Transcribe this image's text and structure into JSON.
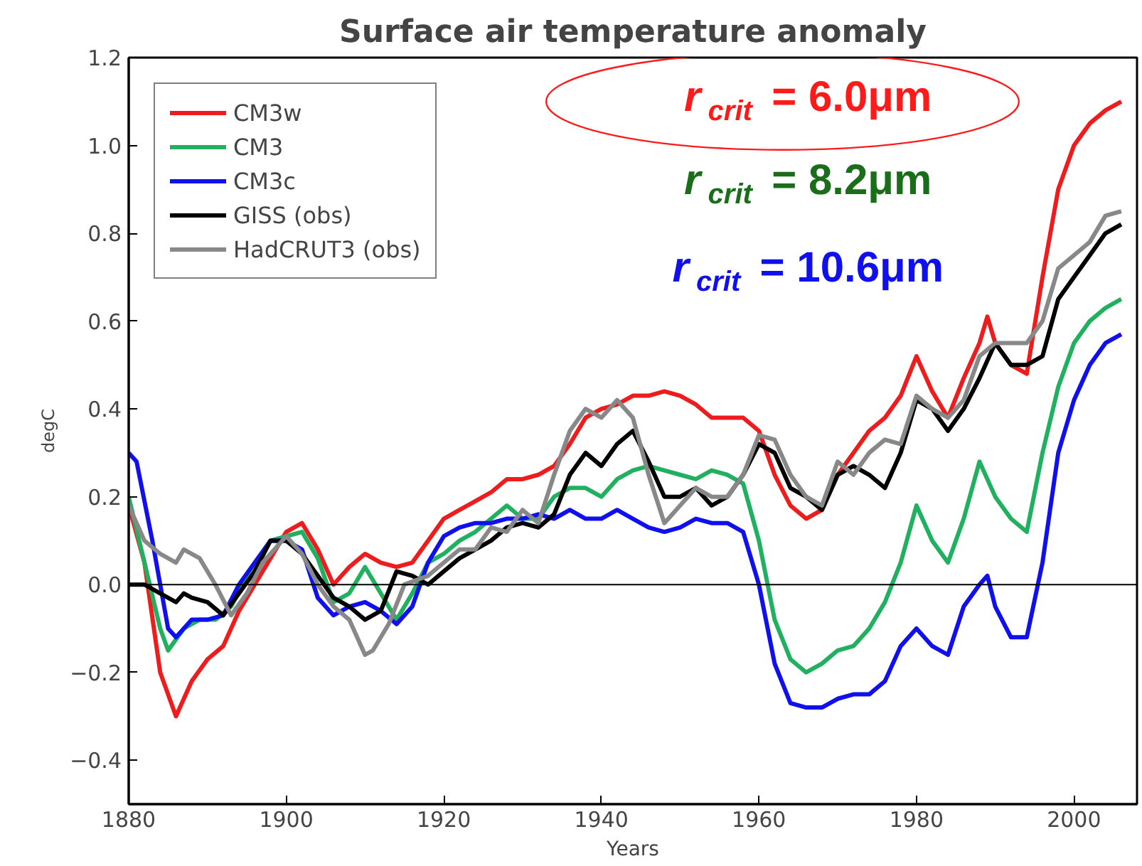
{
  "chart_data": {
    "type": "line",
    "title": "Surface air temperature anomaly",
    "xlabel": "Years",
    "ylabel": "degC",
    "xlim": [
      1880,
      2008
    ],
    "xticks": [
      1880,
      1900,
      1920,
      1940,
      1960,
      1980,
      2000
    ],
    "ylim": [
      -0.5,
      1.2
    ],
    "yticks": [
      {
        "value": -0.4,
        "label": "−0.4"
      },
      {
        "value": -0.2,
        "label": "−0.2"
      },
      {
        "value": 0,
        "label": "0.0"
      },
      {
        "value": 0.2,
        "label": "0.2"
      },
      {
        "value": 0.4,
        "label": "0.4"
      },
      {
        "value": 0.6,
        "label": "0.6"
      },
      {
        "value": 0.8,
        "label": "0.8"
      },
      {
        "value": 1.0,
        "label": "1.0"
      },
      {
        "value": 1.2,
        "label": "1.2"
      }
    ],
    "grid": false,
    "legend": "top left",
    "line_style": "solid",
    "ref_lines": [
      {
        "axis": "y",
        "value": 0,
        "label": null,
        "color": "#000000"
      }
    ],
    "annotations": [
      "r$_{crit}$= 6.0μm",
      "r$_{crit}$= 8.2μm",
      "r$_{crit}$= 10.6μm"
    ],
    "series": [
      {
        "name": "CM3w",
        "color": "#ee1c1c",
        "x": [
          1880,
          1882,
          1884,
          1886,
          1888,
          1890,
          1892,
          1894,
          1896,
          1898,
          1900,
          1902,
          1904,
          1906,
          1908,
          1910,
          1912,
          1914,
          1916,
          1918,
          1920,
          1922,
          1924,
          1926,
          1928,
          1930,
          1932,
          1934,
          1936,
          1938,
          1940,
          1942,
          1944,
          1946,
          1948,
          1950,
          1952,
          1954,
          1956,
          1958,
          1960,
          1962,
          1964,
          1966,
          1968,
          1970,
          1972,
          1974,
          1976,
          1978,
          1980,
          1982,
          1984,
          1986,
          1988,
          1989,
          1990,
          1992,
          1994,
          1996,
          1998,
          2000,
          2002,
          2004,
          2006
        ],
        "values": [
          0.18,
          0.05,
          -0.2,
          -0.3,
          -0.22,
          -0.17,
          -0.14,
          -0.06,
          0.0,
          0.06,
          0.12,
          0.14,
          0.08,
          0.0,
          0.04,
          0.07,
          0.05,
          0.04,
          0.05,
          0.1,
          0.15,
          0.17,
          0.19,
          0.21,
          0.24,
          0.24,
          0.25,
          0.27,
          0.32,
          0.38,
          0.4,
          0.41,
          0.43,
          0.43,
          0.44,
          0.43,
          0.41,
          0.38,
          0.38,
          0.38,
          0.35,
          0.25,
          0.18,
          0.15,
          0.17,
          0.25,
          0.3,
          0.35,
          0.38,
          0.43,
          0.52,
          0.44,
          0.38,
          0.47,
          0.55,
          0.61,
          0.55,
          0.5,
          0.48,
          0.7,
          0.9,
          1.0,
          1.05,
          1.08,
          1.1
        ]
      },
      {
        "name": "CM3",
        "color": "#20b060",
        "x": [
          1880,
          1882,
          1884,
          1885,
          1887,
          1889,
          1891,
          1893,
          1895,
          1898,
          1900,
          1902,
          1904,
          1906,
          1908,
          1910,
          1912,
          1914,
          1916,
          1918,
          1920,
          1922,
          1924,
          1926,
          1928,
          1930,
          1932,
          1934,
          1936,
          1938,
          1940,
          1942,
          1944,
          1946,
          1948,
          1950,
          1952,
          1954,
          1956,
          1958,
          1960,
          1962,
          1964,
          1966,
          1968,
          1970,
          1972,
          1974,
          1976,
          1978,
          1980,
          1982,
          1984,
          1986,
          1988,
          1990,
          1992,
          1994,
          1996,
          1998,
          2000,
          2002,
          2004,
          2006
        ],
        "values": [
          0.2,
          0.05,
          -0.1,
          -0.15,
          -0.1,
          -0.08,
          -0.08,
          -0.05,
          0.02,
          0.1,
          0.11,
          0.12,
          0.06,
          -0.04,
          -0.02,
          0.04,
          -0.02,
          -0.08,
          -0.02,
          0.05,
          0.07,
          0.1,
          0.12,
          0.15,
          0.18,
          0.15,
          0.15,
          0.2,
          0.22,
          0.22,
          0.2,
          0.24,
          0.26,
          0.27,
          0.26,
          0.25,
          0.24,
          0.26,
          0.25,
          0.23,
          0.1,
          -0.08,
          -0.17,
          -0.2,
          -0.18,
          -0.15,
          -0.14,
          -0.1,
          -0.04,
          0.05,
          0.18,
          0.1,
          0.05,
          0.15,
          0.28,
          0.2,
          0.15,
          0.12,
          0.3,
          0.45,
          0.55,
          0.6,
          0.63,
          0.65
        ]
      },
      {
        "name": "CM3c",
        "color": "#1010ee",
        "x": [
          1880,
          1881,
          1883,
          1885,
          1886,
          1888,
          1890,
          1892,
          1894,
          1896,
          1898,
          1900,
          1902,
          1904,
          1906,
          1908,
          1910,
          1912,
          1914,
          1916,
          1918,
          1920,
          1922,
          1924,
          1926,
          1928,
          1930,
          1932,
          1934,
          1936,
          1938,
          1940,
          1942,
          1944,
          1946,
          1948,
          1950,
          1952,
          1954,
          1956,
          1958,
          1960,
          1962,
          1964,
          1966,
          1968,
          1970,
          1972,
          1974,
          1976,
          1978,
          1980,
          1982,
          1984,
          1986,
          1988,
          1989,
          1990,
          1992,
          1994,
          1996,
          1998,
          2000,
          2002,
          2004,
          2006
        ],
        "values": [
          0.3,
          0.28,
          0.1,
          -0.1,
          -0.12,
          -0.08,
          -0.08,
          -0.07,
          0.0,
          0.05,
          0.1,
          0.1,
          0.08,
          -0.03,
          -0.07,
          -0.05,
          -0.04,
          -0.06,
          -0.09,
          -0.05,
          0.05,
          0.11,
          0.13,
          0.14,
          0.14,
          0.15,
          0.15,
          0.16,
          0.15,
          0.17,
          0.15,
          0.15,
          0.17,
          0.15,
          0.13,
          0.12,
          0.13,
          0.15,
          0.14,
          0.14,
          0.12,
          0.0,
          -0.18,
          -0.27,
          -0.28,
          -0.28,
          -0.26,
          -0.25,
          -0.25,
          -0.22,
          -0.14,
          -0.1,
          -0.14,
          -0.16,
          -0.05,
          0.0,
          0.02,
          -0.05,
          -0.12,
          -0.12,
          0.05,
          0.3,
          0.42,
          0.5,
          0.55,
          0.57
        ]
      },
      {
        "name": "GISS (obs)",
        "color": "#000000",
        "x": [
          1880,
          1882,
          1884,
          1886,
          1887,
          1888,
          1890,
          1892,
          1894,
          1896,
          1898,
          1900,
          1902,
          1904,
          1906,
          1908,
          1910,
          1912,
          1914,
          1916,
          1918,
          1920,
          1922,
          1924,
          1926,
          1928,
          1930,
          1932,
          1934,
          1936,
          1938,
          1940,
          1942,
          1944,
          1946,
          1948,
          1950,
          1952,
          1954,
          1956,
          1958,
          1960,
          1962,
          1964,
          1966,
          1968,
          1970,
          1972,
          1974,
          1976,
          1978,
          1980,
          1982,
          1984,
          1986,
          1988,
          1990,
          1992,
          1994,
          1996,
          1998,
          2000,
          2002,
          2004,
          2006
        ],
        "values": [
          0.0,
          0.0,
          -0.02,
          -0.04,
          -0.02,
          -0.03,
          -0.04,
          -0.07,
          -0.02,
          0.03,
          0.1,
          0.1,
          0.07,
          0.02,
          -0.03,
          -0.05,
          -0.08,
          -0.06,
          0.03,
          0.02,
          0.0,
          0.03,
          0.06,
          0.08,
          0.1,
          0.13,
          0.14,
          0.13,
          0.16,
          0.25,
          0.3,
          0.27,
          0.32,
          0.35,
          0.28,
          0.2,
          0.2,
          0.22,
          0.18,
          0.2,
          0.25,
          0.32,
          0.3,
          0.22,
          0.2,
          0.17,
          0.25,
          0.27,
          0.25,
          0.22,
          0.3,
          0.42,
          0.4,
          0.35,
          0.4,
          0.47,
          0.55,
          0.5,
          0.5,
          0.52,
          0.65,
          0.7,
          0.75,
          0.8,
          0.82
        ]
      },
      {
        "name": "HadCRUT3 (obs)",
        "color": "#888888",
        "x": [
          1880,
          1882,
          1884,
          1886,
          1887,
          1889,
          1891,
          1893,
          1895,
          1897,
          1900,
          1902,
          1904,
          1906,
          1908,
          1910,
          1911,
          1913,
          1915,
          1918,
          1920,
          1922,
          1924,
          1926,
          1928,
          1930,
          1932,
          1934,
          1936,
          1938,
          1940,
          1942,
          1944,
          1946,
          1948,
          1950,
          1952,
          1954,
          1956,
          1958,
          1960,
          1962,
          1964,
          1966,
          1968,
          1970,
          1972,
          1974,
          1976,
          1978,
          1980,
          1982,
          1984,
          1986,
          1988,
          1990,
          1992,
          1994,
          1996,
          1998,
          2000,
          2002,
          2004,
          2006
        ],
        "values": [
          0.18,
          0.1,
          0.07,
          0.05,
          0.08,
          0.06,
          0.0,
          -0.07,
          -0.02,
          0.05,
          0.11,
          0.07,
          0.0,
          -0.05,
          -0.08,
          -0.16,
          -0.15,
          -0.09,
          0.0,
          0.02,
          0.05,
          0.08,
          0.08,
          0.13,
          0.12,
          0.17,
          0.14,
          0.25,
          0.35,
          0.4,
          0.38,
          0.42,
          0.38,
          0.25,
          0.14,
          0.18,
          0.22,
          0.2,
          0.2,
          0.25,
          0.34,
          0.33,
          0.25,
          0.2,
          0.18,
          0.28,
          0.25,
          0.3,
          0.33,
          0.32,
          0.43,
          0.4,
          0.38,
          0.42,
          0.52,
          0.55,
          0.55,
          0.55,
          0.6,
          0.72,
          0.75,
          0.78,
          0.84,
          0.85
        ]
      }
    ]
  }
}
